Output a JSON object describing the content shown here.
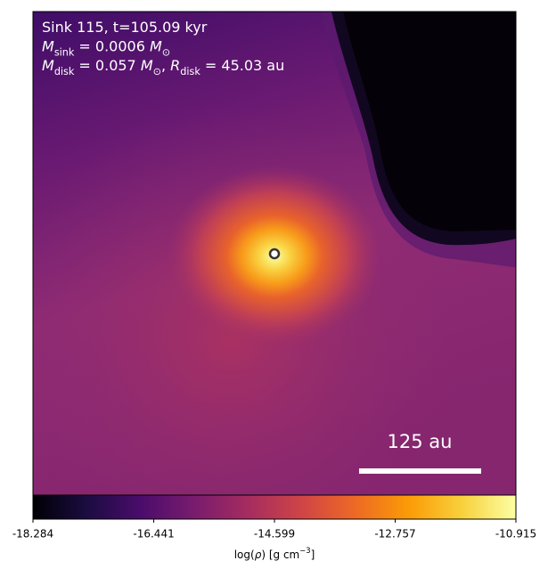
{
  "chart_data": {
    "type": "colormap-image",
    "annotation_lines": [
      [
        {
          "text": "Sink 115, t=105.09 kyr",
          "style": "normal"
        }
      ],
      [
        {
          "text": "M",
          "style": "italic"
        },
        {
          "text": "sink",
          "style": "sub"
        },
        {
          "text": " = 0.0006 ",
          "style": "normal"
        },
        {
          "text": "M",
          "style": "italic"
        },
        {
          "text": "⊙",
          "style": "sub"
        }
      ],
      [
        {
          "text": "M",
          "style": "italic"
        },
        {
          "text": "disk",
          "style": "sub"
        },
        {
          "text": " = 0.057 ",
          "style": "normal"
        },
        {
          "text": "M",
          "style": "italic"
        },
        {
          "text": "⊙",
          "style": "sub"
        },
        {
          "text": ", ",
          "style": "normal"
        },
        {
          "text": "R",
          "style": "italic"
        },
        {
          "text": "disk",
          "style": "sub"
        },
        {
          "text": " = 45.03 au",
          "style": "normal"
        }
      ]
    ],
    "scale_bar_label": "125 au",
    "colorbar": {
      "clim": [
        -18.284,
        -10.915
      ],
      "ticks": [
        -18.284,
        -16.441,
        -14.599,
        -12.757,
        -10.915
      ],
      "label": [
        {
          "text": "log(",
          "style": "normal"
        },
        {
          "text": "ρ",
          "style": "italic"
        },
        {
          "text": ") [g cm",
          "style": "normal"
        },
        {
          "text": "−3",
          "style": "sup"
        },
        {
          "text": "]",
          "style": "normal"
        }
      ],
      "colors": [
        "#000004",
        "#1b0c41",
        "#4a0c6b",
        "#781c6d",
        "#a52c60",
        "#cf4446",
        "#ed6925",
        "#fb9b06",
        "#f7d13d",
        "#fcffa4"
      ]
    }
  }
}
